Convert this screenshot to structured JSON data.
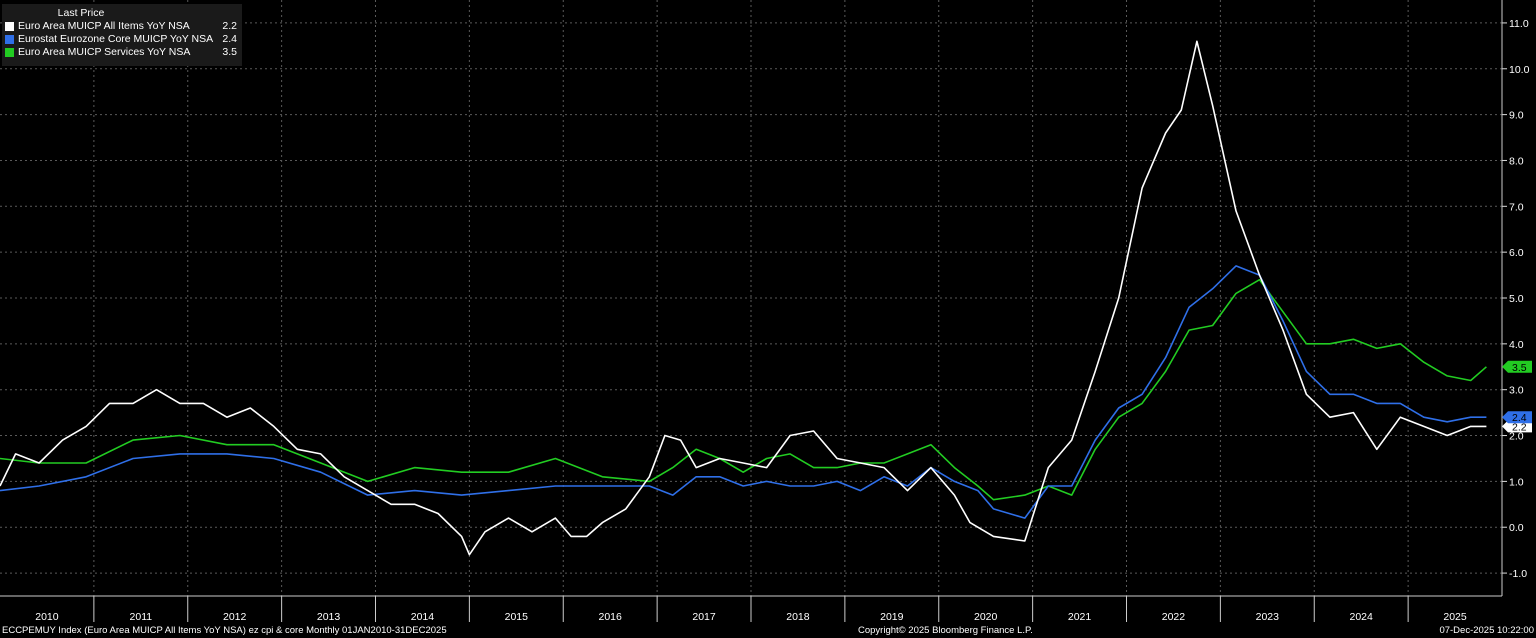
{
  "legend": {
    "header": "Last Price",
    "items": [
      {
        "name": "Euro Area MUICP All Items YoY NSA",
        "value": "2.2",
        "color": "#ffffff"
      },
      {
        "name": "Eurostat Eurozone Core MUICP YoY NSA",
        "value": "2.4",
        "color": "#2f6fe8"
      },
      {
        "name": "Euro Area MUICP Services YoY NSA",
        "value": "3.5",
        "color": "#22cc22"
      }
    ]
  },
  "footer": {
    "left": "ECCPEMUY Index (Euro Area MUICP All Items YoY NSA) ez cpi & core Monthly 01JAN2010-31DEC2025",
    "center": "Copyright© 2025 Bloomberg Finance L.P.",
    "right": "07-Dec-2025 10:22:00"
  },
  "chart_data": {
    "type": "line",
    "x_start": "2010-01",
    "x_end": "2025-12",
    "x_tick_labels": [
      "2010",
      "2011",
      "2012",
      "2013",
      "2014",
      "2015",
      "2016",
      "2017",
      "2018",
      "2019",
      "2020",
      "2021",
      "2022",
      "2023",
      "2024",
      "2025"
    ],
    "ylim": [
      -1.5,
      11.5
    ],
    "y_ticks": [
      -1.0,
      0.0,
      1.0,
      2.0,
      3.0,
      4.0,
      5.0,
      6.0,
      7.0,
      8.0,
      9.0,
      10.0,
      11.0
    ],
    "y_tick_labels": [
      "-1.0",
      "0.0",
      "1.0",
      "2.0",
      "3.0",
      "4.0",
      "5.0",
      "6.0",
      "7.0",
      "8.0",
      "9.0",
      "10.0",
      "11.0"
    ],
    "grid": true,
    "legend_position": "top-left",
    "series": [
      {
        "name": "Euro Area MUICP All Items YoY NSA",
        "last_value": "2.2",
        "color": "#ffffff",
        "x": [
          "2010-01",
          "2010-03",
          "2010-06",
          "2010-09",
          "2010-12",
          "2011-03",
          "2011-06",
          "2011-09",
          "2011-12",
          "2012-03",
          "2012-06",
          "2012-09",
          "2012-12",
          "2013-03",
          "2013-06",
          "2013-09",
          "2013-12",
          "2014-03",
          "2014-06",
          "2014-09",
          "2014-12",
          "2015-01",
          "2015-03",
          "2015-06",
          "2015-09",
          "2015-12",
          "2016-02",
          "2016-04",
          "2016-06",
          "2016-09",
          "2016-12",
          "2017-02",
          "2017-04",
          "2017-06",
          "2017-09",
          "2017-12",
          "2018-03",
          "2018-06",
          "2018-09",
          "2018-12",
          "2019-03",
          "2019-06",
          "2019-09",
          "2019-12",
          "2020-03",
          "2020-05",
          "2020-08",
          "2020-12",
          "2021-03",
          "2021-06",
          "2021-09",
          "2021-12",
          "2022-03",
          "2022-06",
          "2022-08",
          "2022-10",
          "2022-12",
          "2023-03",
          "2023-06",
          "2023-09",
          "2023-12",
          "2024-03",
          "2024-06",
          "2024-09",
          "2024-12",
          "2025-03",
          "2025-06",
          "2025-09",
          "2025-11"
        ],
        "y": [
          0.9,
          1.6,
          1.4,
          1.9,
          2.2,
          2.7,
          2.7,
          3.0,
          2.7,
          2.7,
          2.4,
          2.6,
          2.2,
          1.7,
          1.6,
          1.1,
          0.8,
          0.5,
          0.5,
          0.3,
          -0.2,
          -0.6,
          -0.1,
          0.2,
          -0.1,
          0.2,
          -0.2,
          -0.2,
          0.1,
          0.4,
          1.1,
          2.0,
          1.9,
          1.3,
          1.5,
          1.4,
          1.3,
          2.0,
          2.1,
          1.5,
          1.4,
          1.3,
          0.8,
          1.3,
          0.7,
          0.1,
          -0.2,
          -0.3,
          1.3,
          1.9,
          3.4,
          5.0,
          7.4,
          8.6,
          9.1,
          10.6,
          9.2,
          6.9,
          5.5,
          4.3,
          2.9,
          2.4,
          2.5,
          1.7,
          2.4,
          2.2,
          2.0,
          2.2,
          2.2
        ]
      },
      {
        "name": "Eurostat Eurozone Core MUICP YoY NSA",
        "last_value": "2.4",
        "color": "#2f6fe8",
        "x": [
          "2010-01",
          "2010-06",
          "2010-12",
          "2011-06",
          "2011-12",
          "2012-06",
          "2012-12",
          "2013-06",
          "2013-12",
          "2014-06",
          "2014-12",
          "2015-06",
          "2015-12",
          "2016-06",
          "2016-12",
          "2017-03",
          "2017-06",
          "2017-09",
          "2017-12",
          "2018-03",
          "2018-06",
          "2018-09",
          "2018-12",
          "2019-03",
          "2019-06",
          "2019-09",
          "2019-12",
          "2020-03",
          "2020-06",
          "2020-08",
          "2020-12",
          "2021-03",
          "2021-06",
          "2021-09",
          "2021-12",
          "2022-03",
          "2022-06",
          "2022-09",
          "2022-12",
          "2023-03",
          "2023-06",
          "2023-09",
          "2023-12",
          "2024-03",
          "2024-06",
          "2024-09",
          "2024-12",
          "2025-03",
          "2025-06",
          "2025-09",
          "2025-11"
        ],
        "y": [
          0.8,
          0.9,
          1.1,
          1.5,
          1.6,
          1.6,
          1.5,
          1.2,
          0.7,
          0.8,
          0.7,
          0.8,
          0.9,
          0.9,
          0.9,
          0.7,
          1.1,
          1.1,
          0.9,
          1.0,
          0.9,
          0.9,
          1.0,
          0.8,
          1.1,
          0.9,
          1.3,
          1.0,
          0.8,
          0.4,
          0.2,
          0.9,
          0.9,
          1.9,
          2.6,
          2.9,
          3.7,
          4.8,
          5.2,
          5.7,
          5.5,
          4.5,
          3.4,
          2.9,
          2.9,
          2.7,
          2.7,
          2.4,
          2.3,
          2.4,
          2.4
        ]
      },
      {
        "name": "Euro Area MUICP Services YoY NSA",
        "last_value": "3.5",
        "color": "#22cc22",
        "x": [
          "2010-01",
          "2010-06",
          "2010-12",
          "2011-06",
          "2011-12",
          "2012-06",
          "2012-12",
          "2013-06",
          "2013-12",
          "2014-06",
          "2014-12",
          "2015-06",
          "2015-12",
          "2016-06",
          "2016-12",
          "2017-03",
          "2017-06",
          "2017-09",
          "2017-12",
          "2018-03",
          "2018-06",
          "2018-09",
          "2018-12",
          "2019-03",
          "2019-06",
          "2019-09",
          "2019-12",
          "2020-03",
          "2020-06",
          "2020-08",
          "2020-12",
          "2021-03",
          "2021-06",
          "2021-09",
          "2021-12",
          "2022-03",
          "2022-06",
          "2022-09",
          "2022-12",
          "2023-03",
          "2023-06",
          "2023-09",
          "2023-12",
          "2024-03",
          "2024-06",
          "2024-09",
          "2024-12",
          "2025-03",
          "2025-06",
          "2025-09",
          "2025-11"
        ],
        "y": [
          1.5,
          1.4,
          1.4,
          1.9,
          2.0,
          1.8,
          1.8,
          1.4,
          1.0,
          1.3,
          1.2,
          1.2,
          1.5,
          1.1,
          1.0,
          1.3,
          1.7,
          1.5,
          1.2,
          1.5,
          1.6,
          1.3,
          1.3,
          1.4,
          1.4,
          1.6,
          1.8,
          1.3,
          0.9,
          0.6,
          0.7,
          0.9,
          0.7,
          1.7,
          2.4,
          2.7,
          3.4,
          4.3,
          4.4,
          5.1,
          5.4,
          4.7,
          4.0,
          4.0,
          4.1,
          3.9,
          4.0,
          3.6,
          3.3,
          3.2,
          3.5
        ]
      }
    ]
  }
}
